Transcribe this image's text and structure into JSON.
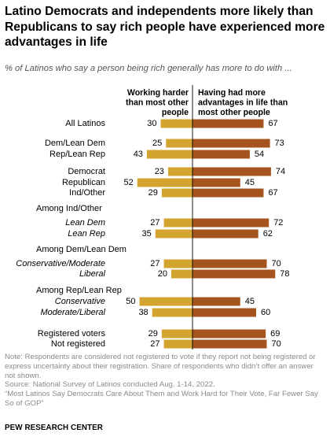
{
  "header": {
    "title": "Latino Democrats and independents more likely than Republicans to say rich people have experienced more advantages in life",
    "subtitle": "% of Latinos who say a person being rich generally has more to do with ..."
  },
  "chart_data": {
    "type": "bar",
    "orientation": "diverging-horizontal",
    "series": [
      {
        "name": "Working harder than most other people",
        "color": "#d3a42f"
      },
      {
        "name": "Having had more advantages in life than most other people",
        "color": "#a6541f"
      }
    ],
    "rows": [
      {
        "label": "All Latinos",
        "italic": false,
        "left": 30,
        "right": 67
      },
      {
        "label": "Dem/Lean Dem",
        "italic": false,
        "left": 25,
        "right": 73
      },
      {
        "label": "Rep/Lean Rep",
        "italic": false,
        "left": 43,
        "right": 54
      },
      {
        "label": "Democrat",
        "italic": false,
        "left": 23,
        "right": 74
      },
      {
        "label": "Republican",
        "italic": false,
        "left": 52,
        "right": 45
      },
      {
        "label": "Ind/Other",
        "italic": false,
        "left": 29,
        "right": 67
      },
      {
        "label": "Lean Dem",
        "italic": true,
        "left": 27,
        "right": 72
      },
      {
        "label": "Lean Rep",
        "italic": true,
        "left": 35,
        "right": 62
      },
      {
        "label": "Conservative/Moderate",
        "italic": true,
        "left": 27,
        "right": 70
      },
      {
        "label": "Liberal",
        "italic": true,
        "left": 20,
        "right": 78
      },
      {
        "label": "Conservative",
        "italic": true,
        "left": 50,
        "right": 45
      },
      {
        "label": "Moderate/Liberal",
        "italic": true,
        "left": 38,
        "right": 60
      },
      {
        "label": "Registered voters",
        "italic": false,
        "left": 29,
        "right": 69
      },
      {
        "label": "Not registered",
        "italic": false,
        "left": 27,
        "right": 70
      }
    ],
    "group_headers": [
      "Among Ind/Other",
      "Among Dem/Lean Dem",
      "Among Rep/Lean Rep"
    ],
    "legend_placement": "top",
    "grid": false
  },
  "footer": {
    "note": "Note: Respondents are considered not registered to vote if they report not being registered or express uncertainty about their registration. Share of respondents who didn’t offer an answer not shown.",
    "source": "Source: National Survey of Latinos conducted Aug. 1-14, 2022.",
    "report": "“Most Latinos Say Democrats Care About Them and Work Hard for Their Vote, Far Fewer Say So of GOP”",
    "org": "PEW RESEARCH CENTER"
  }
}
